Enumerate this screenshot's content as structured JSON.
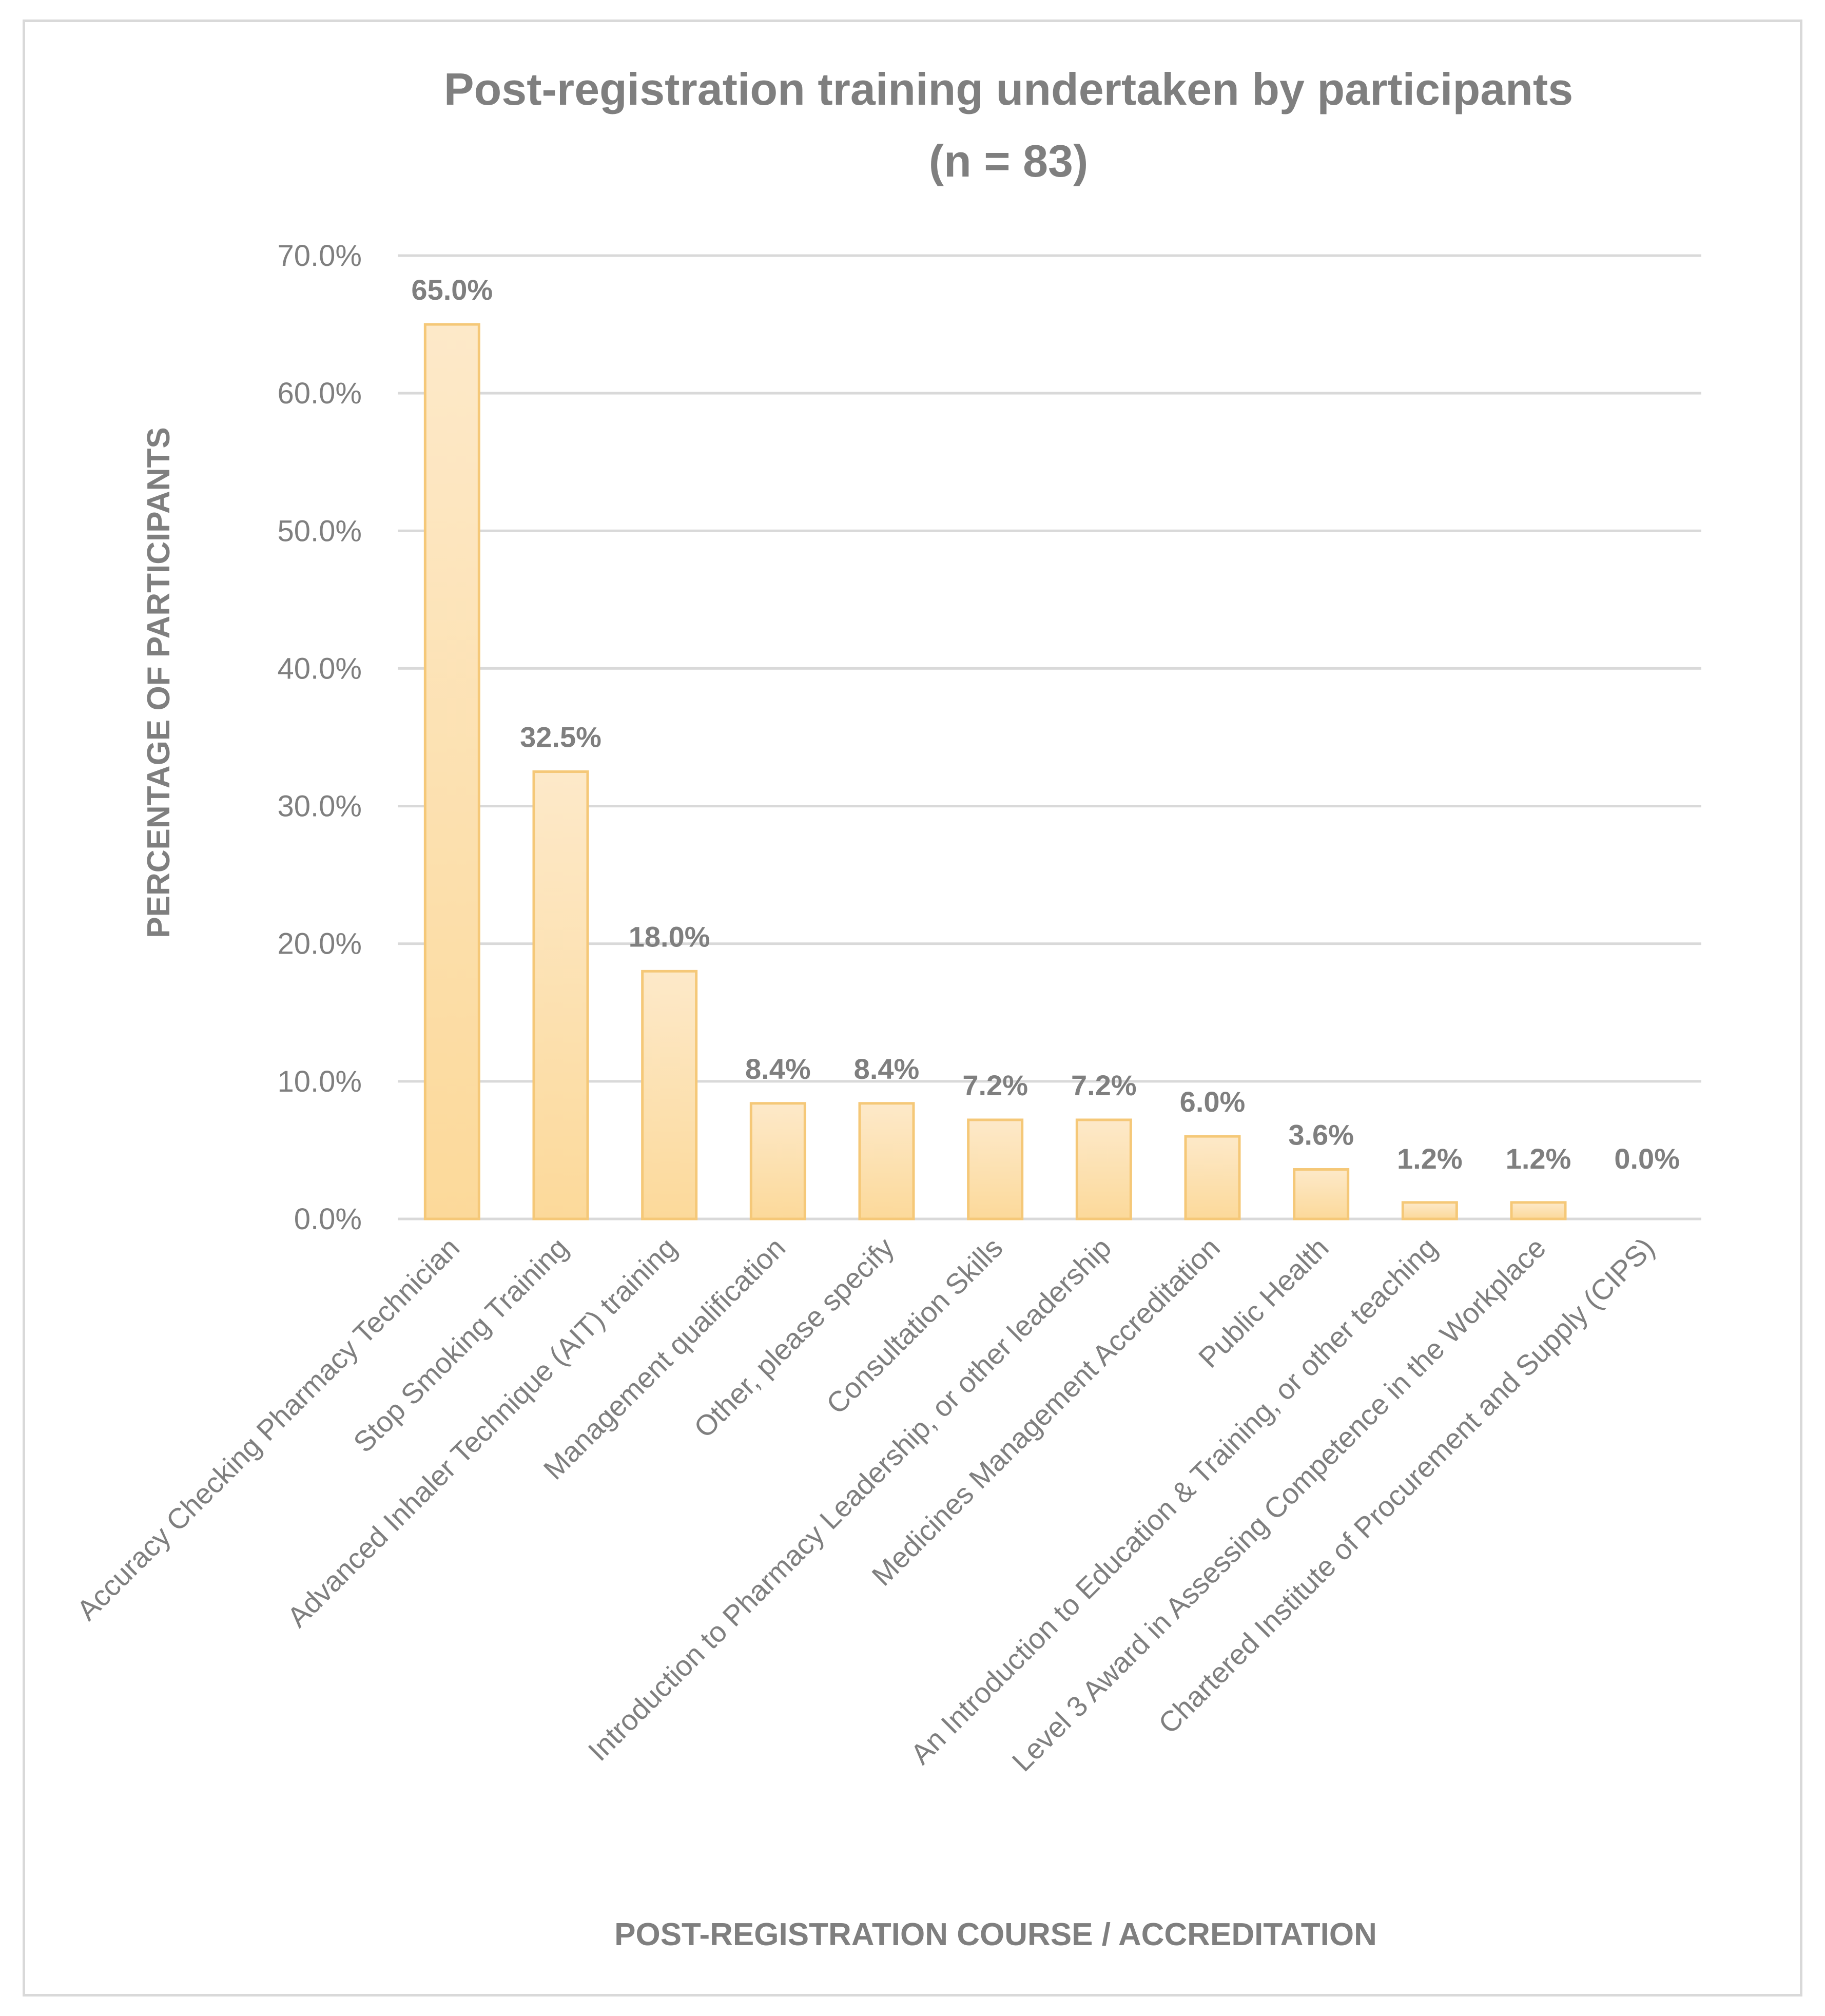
{
  "chart_data": {
    "type": "bar",
    "title": [
      "Post-registration training undertaken by participants",
      "(n = 83)"
    ],
    "xlabel": "POST-REGISTRATION COURSE / ACCREDITATION",
    "ylabel": "PERCENTAGE OF PARTICIPANTS",
    "ylim": [
      0,
      70
    ],
    "yticks": [
      "0.0%",
      "10.0%",
      "20.0%",
      "30.0%",
      "40.0%",
      "50.0%",
      "60.0%",
      "70.0%"
    ],
    "grid": true,
    "categories": [
      "Accuracy Checking Pharmacy Technician",
      "Stop Smoking Training",
      "Advanced Inhaler Technique (AIT) training",
      "Management qualification",
      "Other, please specify",
      "Consultation Skills",
      "Introduction to Pharmacy Leadership, or other leadership",
      "Medicines Management Accreditation",
      "Public Health",
      "An Introduction to Education & Training, or other teaching",
      "Level 3 Award in Assessing Competence in the Workplace",
      "Chartered Institute of Procurement and Supply (CIPS)"
    ],
    "values": [
      65.0,
      32.5,
      18.0,
      8.4,
      8.4,
      7.2,
      7.2,
      6.0,
      3.6,
      1.2,
      1.2,
      0.0
    ],
    "data_labels": [
      "65.0%",
      "32.5%",
      "18.0%",
      "8.4%",
      "8.4%",
      "7.2%",
      "7.2%",
      "6.0%",
      "3.6%",
      "1.2%",
      "1.2%",
      "0.0%"
    ],
    "colors": {
      "bar_fill_top": "#fde9c9",
      "bar_fill_bottom": "#fcd99a",
      "bar_stroke": "#f5c878",
      "text": "#7f7f7f",
      "grid": "#d9d9d9"
    }
  }
}
